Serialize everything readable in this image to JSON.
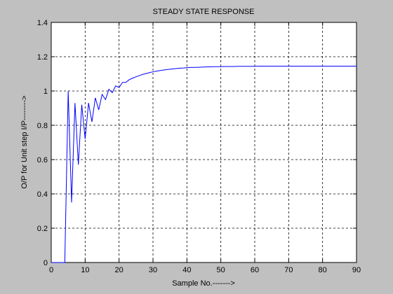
{
  "chart_data": {
    "type": "line",
    "title": "STEADY STATE RESPONSE",
    "x_label": "Sample No.------->",
    "y_label": "O/P for Unit step I/P-------->",
    "x": [
      0,
      1,
      2,
      3,
      4,
      5,
      6,
      7,
      8,
      9,
      10,
      11,
      12,
      13,
      14,
      15,
      16,
      17,
      18,
      19,
      20,
      21,
      22,
      23,
      24,
      25,
      26,
      27,
      28,
      29,
      30,
      31,
      32,
      33,
      34,
      35,
      36,
      37,
      38,
      39,
      40,
      41,
      42,
      43,
      44,
      45,
      46,
      47,
      48,
      49,
      50,
      51,
      52,
      53,
      54,
      55,
      56,
      57,
      58,
      59,
      60,
      61,
      62,
      63,
      64,
      65,
      66,
      67,
      68,
      69,
      70,
      71,
      72,
      73,
      74,
      75,
      76,
      77,
      78,
      79,
      80,
      81,
      82,
      83,
      84,
      85,
      86,
      87,
      88,
      89,
      90
    ],
    "series": [
      {
        "color": "#0000ff",
        "values": [
          0,
          0,
          0,
          0,
          0,
          1.0,
          0.35,
          0.93,
          0.57,
          0.92,
          0.72,
          0.93,
          0.82,
          0.96,
          0.89,
          0.98,
          0.95,
          1.01,
          0.99,
          1.03,
          1.02,
          1.05,
          1.05,
          1.066,
          1.075,
          1.083,
          1.09,
          1.097,
          1.102,
          1.107,
          1.112,
          1.116,
          1.119,
          1.122,
          1.125,
          1.127,
          1.129,
          1.131,
          1.133,
          1.134,
          1.136,
          1.137,
          1.138,
          1.138,
          1.139,
          1.14,
          1.141,
          1.141,
          1.142,
          1.142,
          1.142,
          1.143,
          1.143,
          1.143,
          1.143,
          1.144,
          1.144,
          1.144,
          1.144,
          1.144,
          1.144,
          1.145,
          1.145,
          1.145,
          1.145,
          1.145,
          1.145,
          1.145,
          1.145,
          1.145,
          1.145,
          1.145,
          1.145,
          1.145,
          1.145,
          1.145,
          1.145,
          1.145,
          1.145,
          1.145,
          1.145,
          1.145,
          1.145,
          1.145,
          1.145,
          1.145,
          1.145,
          1.145,
          1.145,
          1.145,
          1.145
        ]
      }
    ],
    "xlim": [
      0,
      90
    ],
    "xticks": [
      0,
      10,
      20,
      30,
      40,
      50,
      60,
      70,
      80,
      90
    ],
    "ylim": [
      0,
      1.4
    ],
    "yticks": [
      0,
      0.2,
      0.4,
      0.6,
      0.8,
      1,
      1.2,
      1.4
    ],
    "grid": true
  }
}
